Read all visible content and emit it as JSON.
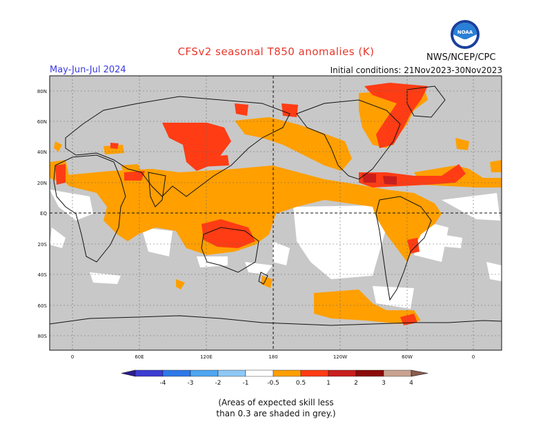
{
  "header": {
    "title": "CFSv2 seasonal T850 anomalies (K)",
    "season": "May-Jun-Jul 2024",
    "initial_conditions": "Initial conditions: 21Nov2023-30Nov2023",
    "organization": "NWS/NCEP/CPC",
    "logo_text": "NOAA"
  },
  "map": {
    "lat_labels": [
      "80N",
      "60N",
      "40N",
      "20N",
      "EQ",
      "20S",
      "40S",
      "60S",
      "80S"
    ],
    "lon_labels": [
      "0",
      "60E",
      "120E",
      "180",
      "120W",
      "60W",
      "0"
    ]
  },
  "legend": {
    "tick_labels": [
      "-4",
      "-3",
      "-2",
      "-1",
      "-0.5",
      "0.5",
      "1",
      "2",
      "3",
      "4"
    ],
    "colors": [
      "#2a1f8f",
      "#3c3cd2",
      "#2f78e8",
      "#4da6f0",
      "#8ec8f5",
      "#ffffff",
      "#ff9f00",
      "#ff3c14",
      "#c81e1e",
      "#8b0a0a",
      "#c9a390",
      "#8a5c4e"
    ],
    "grey_color": "#c8c8c8"
  },
  "footnote": {
    "line1": "(Areas of expected skill less",
    "line2": "than 0.3 are shaded in grey.)"
  }
}
